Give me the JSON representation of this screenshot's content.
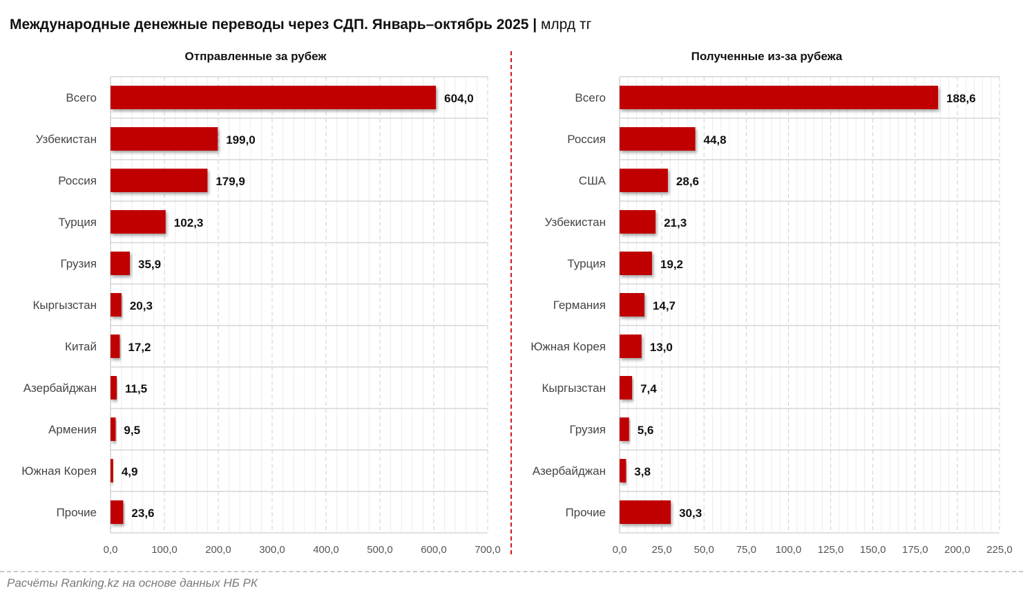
{
  "title": "Международные денежные переводы через СДП. Январь–октябрь 2025",
  "unit": "млрд тг",
  "footer": "Расчёты Ranking.kz на основе данных НБ РК",
  "colors": {
    "bar": "#c00000",
    "divider": "#d0161b"
  },
  "chart_data": [
    {
      "type": "bar",
      "orientation": "horizontal",
      "title": "Отправленные за рубеж",
      "categories": [
        "Всего",
        "Узбекистан",
        "Россия",
        "Турция",
        "Грузия",
        "Кыргызстан",
        "Китай",
        "Азербайджан",
        "Армения",
        "Южная Корея",
        "Прочие"
      ],
      "values": [
        604.0,
        199.0,
        179.9,
        102.3,
        35.9,
        20.3,
        17.2,
        11.5,
        9.5,
        4.9,
        23.6
      ],
      "labels": [
        "604,0",
        "199,0",
        "179,9",
        "102,3",
        "35,9",
        "20,3",
        "17,2",
        "11,5",
        "9,5",
        "4,9",
        "23,6"
      ],
      "xlim": [
        0,
        700
      ],
      "ticks": [
        "0,0",
        "100,0",
        "200,0",
        "300,0",
        "400,0",
        "500,0",
        "600,0",
        "700,0"
      ],
      "tick_step": 100,
      "minor_step": 20
    },
    {
      "type": "bar",
      "orientation": "horizontal",
      "title": "Полученные из-за рубежа",
      "categories": [
        "Всего",
        "Россия",
        "США",
        "Узбекистан",
        "Турция",
        "Германия",
        "Южная Корея",
        "Кыргызстан",
        "Грузия",
        "Азербайджан",
        "Прочие"
      ],
      "values": [
        188.6,
        44.8,
        28.6,
        21.3,
        19.2,
        14.7,
        13.0,
        7.4,
        5.6,
        3.8,
        30.3
      ],
      "labels": [
        "188,6",
        "44,8",
        "28,6",
        "21,3",
        "19,2",
        "14,7",
        "13,0",
        "7,4",
        "5,6",
        "3,8",
        "30,3"
      ],
      "xlim": [
        0,
        225
      ],
      "ticks": [
        "0,0",
        "25,0",
        "50,0",
        "75,0",
        "100,0",
        "125,0",
        "150,0",
        "175,0",
        "200,0",
        "225,0"
      ],
      "tick_step": 25,
      "minor_step": 5
    }
  ]
}
